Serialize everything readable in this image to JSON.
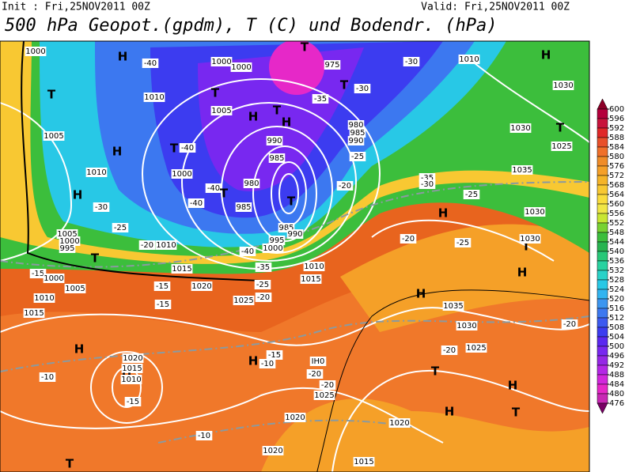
{
  "header": {
    "init": "Init : Fri,25NOV2011 00Z",
    "valid": "Valid: Fri,25NOV2011 00Z",
    "title": "500 hPa Geopot.(gpdm), T (C) und Bodendr. (hPa)"
  },
  "colorbar": {
    "ticks": [
      600,
      596,
      592,
      588,
      584,
      580,
      576,
      572,
      568,
      564,
      560,
      556,
      552,
      548,
      544,
      540,
      536,
      532,
      528,
      524,
      520,
      516,
      512,
      508,
      504,
      500,
      496,
      492,
      488,
      484,
      480,
      476
    ],
    "colors": [
      "#8c0028",
      "#b4003c",
      "#c8143c",
      "#e02828",
      "#e8502a",
      "#f0702a",
      "#f08c28",
      "#f5a028",
      "#f5b428",
      "#f8c832",
      "#fadc3c",
      "#f0e646",
      "#c8e632",
      "#78d232",
      "#3cbe3c",
      "#28b450",
      "#28c878",
      "#28d2a0",
      "#28d2c8",
      "#28c8e6",
      "#32b4f0",
      "#3c96f0",
      "#3c78f0",
      "#3c5af0",
      "#3c3cf0",
      "#5a28f0",
      "#7828f0",
      "#9628e6",
      "#b428e6",
      "#d228dc",
      "#e628c8",
      "#c828b4",
      "#780064"
    ]
  },
  "map_labels": [
    "1000",
    "H",
    "-40",
    "1000",
    "1000",
    "975",
    "T",
    "-30",
    "1010",
    "H",
    "1030",
    "T",
    "1010",
    "T",
    "-35",
    "T",
    "-30",
    "1005",
    "H",
    "T",
    "H",
    "980",
    "985",
    "990",
    "1030",
    "T",
    "1005",
    "H",
    "990",
    "T",
    "-40",
    "1025",
    "985",
    "-25",
    "1010",
    "1000",
    "980",
    "-40",
    "T",
    "-20",
    "-35",
    "-30",
    "1035",
    "H",
    "-40",
    "985",
    "T",
    "-30",
    "-25",
    "H",
    "1030",
    "-25",
    "1005",
    "1000",
    "995",
    "985",
    "990",
    "995",
    "-20",
    "1010",
    "1000",
    "-40",
    "-20",
    "-25",
    "T",
    "1015",
    "-35",
    "1010",
    "1015",
    "T",
    "H",
    "1030",
    "-15",
    "1000",
    "1005",
    "-15",
    "1020",
    "-25",
    "1010",
    "-15",
    "1025",
    "-20",
    "H",
    "1035",
    "1015",
    "1030",
    "-20",
    "H",
    "1020",
    "-15",
    "H",
    "-10",
    "IH0",
    "-20",
    "1025",
    "1015",
    "H",
    "1010",
    "-10",
    "-20",
    "T",
    "-20",
    "-15",
    "1025",
    "H",
    "1020",
    "H",
    "T",
    "-10",
    "1020",
    "1020",
    "T",
    "1015"
  ]
}
